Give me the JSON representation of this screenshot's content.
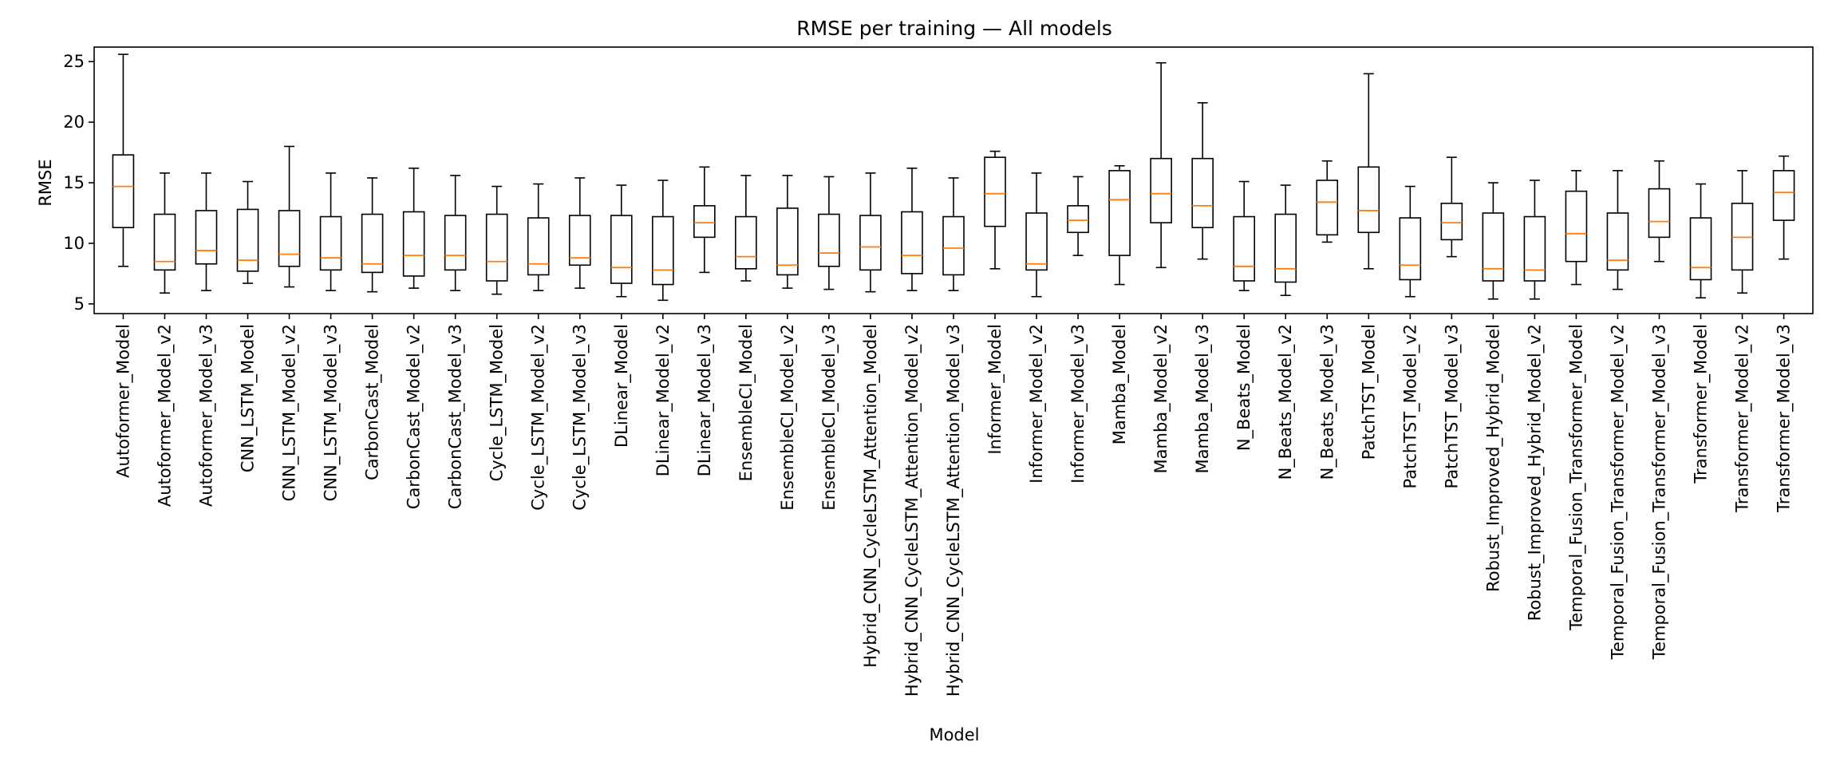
{
  "chart_data": {
    "type": "box",
    "title": "RMSE per training — All models",
    "xlabel": "Model",
    "ylabel": "RMSE",
    "ylim": [
      4.2,
      26.2
    ],
    "yticks": [
      5,
      10,
      15,
      20,
      25
    ],
    "grid": false,
    "colors": {
      "box": "#000000",
      "median": "#ff7f0e"
    },
    "categories": [
      "Autoformer_Model",
      "Autoformer_Model_v2",
      "Autoformer_Model_v3",
      "CNN_LSTM_Model",
      "CNN_LSTM_Model_v2",
      "CNN_LSTM_Model_v3",
      "CarbonCast_Model",
      "CarbonCast_Model_v2",
      "CarbonCast_Model_v3",
      "Cycle_LSTM_Model",
      "Cycle_LSTM_Model_v2",
      "Cycle_LSTM_Model_v3",
      "DLinear_Model",
      "DLinear_Model_v2",
      "DLinear_Model_v3",
      "EnsembleCI_Model",
      "EnsembleCI_Model_v2",
      "EnsembleCI_Model_v3",
      "Hybrid_CNN_CycleLSTM_Attention_Model",
      "Hybrid_CNN_CycleLSTM_Attention_Model_v2",
      "Hybrid_CNN_CycleLSTM_Attention_Model_v3",
      "Informer_Model",
      "Informer_Model_v2",
      "Informer_Model_v3",
      "Mamba_Model",
      "Mamba_Model_v2",
      "Mamba_Model_v3",
      "N_Beats_Model",
      "N_Beats_Model_v2",
      "N_Beats_Model_v3",
      "PatchTST_Model",
      "PatchTST_Model_v2",
      "PatchTST_Model_v3",
      "Robust_Improved_Hybrid_Model",
      "Robust_Improved_Hybrid_Model_v2",
      "Temporal_Fusion_Transformer_Model",
      "Temporal_Fusion_Transformer_Model_v2",
      "Temporal_Fusion_Transformer_Model_v3",
      "Transformer_Model",
      "Transformer_Model_v2",
      "Transformer_Model_v3"
    ],
    "boxes": [
      {
        "min": 8.1,
        "q1": 11.3,
        "median": 14.7,
        "q3": 17.3,
        "max": 25.6
      },
      {
        "min": 5.9,
        "q1": 7.8,
        "median": 8.5,
        "q3": 12.4,
        "max": 15.8
      },
      {
        "min": 6.1,
        "q1": 8.3,
        "median": 9.4,
        "q3": 12.7,
        "max": 15.8
      },
      {
        "min": 6.7,
        "q1": 7.7,
        "median": 8.6,
        "q3": 12.8,
        "max": 15.1
      },
      {
        "min": 6.4,
        "q1": 8.1,
        "median": 9.1,
        "q3": 12.7,
        "max": 18.0
      },
      {
        "min": 6.1,
        "q1": 7.8,
        "median": 8.8,
        "q3": 12.2,
        "max": 15.8
      },
      {
        "min": 6.0,
        "q1": 7.6,
        "median": 8.3,
        "q3": 12.4,
        "max": 15.4
      },
      {
        "min": 6.3,
        "q1": 7.3,
        "median": 9.0,
        "q3": 12.6,
        "max": 16.2
      },
      {
        "min": 6.1,
        "q1": 7.8,
        "median": 9.0,
        "q3": 12.3,
        "max": 15.6
      },
      {
        "min": 5.8,
        "q1": 6.9,
        "median": 8.5,
        "q3": 12.4,
        "max": 14.7
      },
      {
        "min": 6.1,
        "q1": 7.4,
        "median": 8.3,
        "q3": 12.1,
        "max": 14.9
      },
      {
        "min": 6.3,
        "q1": 8.2,
        "median": 8.8,
        "q3": 12.3,
        "max": 15.4
      },
      {
        "min": 5.6,
        "q1": 6.7,
        "median": 8.0,
        "q3": 12.3,
        "max": 14.8
      },
      {
        "min": 5.3,
        "q1": 6.6,
        "median": 7.8,
        "q3": 12.2,
        "max": 15.2
      },
      {
        "min": 7.6,
        "q1": 10.5,
        "median": 11.7,
        "q3": 13.1,
        "max": 16.3
      },
      {
        "min": 6.9,
        "q1": 7.9,
        "median": 8.9,
        "q3": 12.2,
        "max": 15.6
      },
      {
        "min": 6.3,
        "q1": 7.4,
        "median": 8.2,
        "q3": 12.9,
        "max": 15.6
      },
      {
        "min": 6.2,
        "q1": 8.1,
        "median": 9.2,
        "q3": 12.4,
        "max": 15.5
      },
      {
        "min": 6.0,
        "q1": 7.8,
        "median": 9.7,
        "q3": 12.3,
        "max": 15.8
      },
      {
        "min": 6.1,
        "q1": 7.5,
        "median": 9.0,
        "q3": 12.6,
        "max": 16.2
      },
      {
        "min": 6.1,
        "q1": 7.4,
        "median": 9.6,
        "q3": 12.2,
        "max": 15.4
      },
      {
        "min": 7.9,
        "q1": 11.4,
        "median": 14.1,
        "q3": 17.1,
        "max": 17.6
      },
      {
        "min": 5.6,
        "q1": 7.8,
        "median": 8.3,
        "q3": 12.5,
        "max": 15.8
      },
      {
        "min": 9.0,
        "q1": 10.9,
        "median": 11.9,
        "q3": 13.1,
        "max": 15.5
      },
      {
        "min": 6.6,
        "q1": 9.0,
        "median": 13.6,
        "q3": 16.0,
        "max": 16.4
      },
      {
        "min": 8.0,
        "q1": 11.7,
        "median": 14.1,
        "q3": 17.0,
        "max": 24.9
      },
      {
        "min": 8.7,
        "q1": 11.3,
        "median": 13.1,
        "q3": 17.0,
        "max": 21.6
      },
      {
        "min": 6.1,
        "q1": 6.9,
        "median": 8.1,
        "q3": 12.2,
        "max": 15.1
      },
      {
        "min": 5.7,
        "q1": 6.8,
        "median": 7.9,
        "q3": 12.4,
        "max": 14.8
      },
      {
        "min": 10.1,
        "q1": 10.7,
        "median": 13.4,
        "q3": 15.2,
        "max": 16.8
      },
      {
        "min": 7.9,
        "q1": 10.9,
        "median": 12.7,
        "q3": 16.3,
        "max": 24.0
      },
      {
        "min": 5.6,
        "q1": 7.0,
        "median": 8.2,
        "q3": 12.1,
        "max": 14.7
      },
      {
        "min": 8.9,
        "q1": 10.3,
        "median": 11.7,
        "q3": 13.3,
        "max": 17.1
      },
      {
        "min": 5.4,
        "q1": 6.9,
        "median": 7.9,
        "q3": 12.5,
        "max": 15.0
      },
      {
        "min": 5.4,
        "q1": 6.9,
        "median": 7.8,
        "q3": 12.2,
        "max": 15.2
      },
      {
        "min": 6.6,
        "q1": 8.5,
        "median": 10.8,
        "q3": 14.3,
        "max": 16.0
      },
      {
        "min": 6.2,
        "q1": 7.8,
        "median": 8.6,
        "q3": 12.5,
        "max": 16.0
      },
      {
        "min": 8.5,
        "q1": 10.5,
        "median": 11.8,
        "q3": 14.5,
        "max": 16.8
      },
      {
        "min": 5.5,
        "q1": 7.0,
        "median": 8.0,
        "q3": 12.1,
        "max": 14.9
      },
      {
        "min": 5.9,
        "q1": 7.8,
        "median": 10.5,
        "q3": 13.3,
        "max": 16.0
      },
      {
        "min": 8.7,
        "q1": 11.9,
        "median": 14.2,
        "q3": 16.0,
        "max": 17.2
      }
    ]
  }
}
